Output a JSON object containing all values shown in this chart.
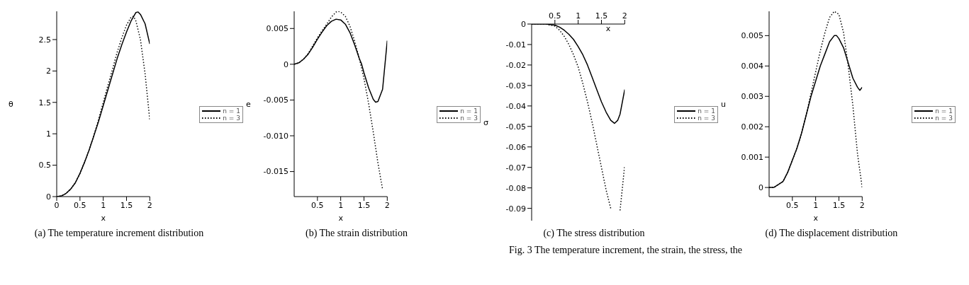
{
  "chart_data": [
    {
      "type": "line",
      "title": "(a) The temperature increment distribution",
      "xlabel": "x",
      "ylabel": "θ",
      "xlim": [
        0,
        2
      ],
      "xticks": [
        0,
        0.5,
        1,
        1.5,
        2
      ],
      "ylim": [
        0,
        2.95
      ],
      "yticks": [
        0,
        0.5,
        1,
        1.5,
        2,
        2.5
      ],
      "legend": "right",
      "marker": "none",
      "series": [
        {
          "name": "n = 1",
          "color": "#000000",
          "line_style": "solid",
          "x": [
            0,
            0.1,
            0.2,
            0.3,
            0.4,
            0.5,
            0.6,
            0.7,
            0.8,
            0.9,
            1,
            1.1,
            1.2,
            1.3,
            1.4,
            1.5,
            1.6,
            1.7,
            1.75,
            1.8,
            1.9,
            2
          ],
          "values": [
            0,
            0.01,
            0.05,
            0.12,
            0.22,
            0.37,
            0.55,
            0.75,
            0.97,
            1.2,
            1.45,
            1.7,
            1.95,
            2.2,
            2.42,
            2.62,
            2.8,
            2.93,
            2.94,
            2.9,
            2.75,
            2.43
          ]
        },
        {
          "name": "n = 3",
          "color": "#000000",
          "line_style": "dotted",
          "x": [
            0,
            0.1,
            0.2,
            0.3,
            0.4,
            0.5,
            0.6,
            0.7,
            0.8,
            0.9,
            1,
            1.1,
            1.2,
            1.3,
            1.4,
            1.5,
            1.6,
            1.65,
            1.7,
            1.8,
            1.9,
            2
          ],
          "values": [
            0,
            0.01,
            0.05,
            0.12,
            0.22,
            0.37,
            0.55,
            0.75,
            0.98,
            1.23,
            1.5,
            1.77,
            2.03,
            2.3,
            2.53,
            2.73,
            2.86,
            2.87,
            2.8,
            2.5,
            1.95,
            1.22
          ]
        }
      ]
    },
    {
      "type": "line",
      "title": "(b) The strain distribution",
      "xlabel": "x",
      "ylabel": "e",
      "xlim": [
        0,
        2
      ],
      "xticks": [
        0.5,
        1,
        1.5,
        2
      ],
      "ylim": [
        -0.0185,
        0.0074
      ],
      "yticks": [
        {
          "value": -0.015,
          "label": "-0.015"
        },
        {
          "value": -0.01,
          "label": "-0.010"
        },
        {
          "value": -0.005,
          "label": "-0.005"
        },
        0,
        0.005
      ],
      "legend": "right",
      "marker": "none",
      "series": [
        {
          "name": "n = 1",
          "color": "#000000",
          "line_style": "solid",
          "x": [
            0,
            0.1,
            0.2,
            0.3,
            0.4,
            0.5,
            0.6,
            0.7,
            0.8,
            0.9,
            1,
            1.1,
            1.2,
            1.3,
            1.4,
            1.45,
            1.5,
            1.6,
            1.7,
            1.75,
            1.8,
            1.9,
            2
          ],
          "values": [
            0,
            0.0002,
            0.0007,
            0.0014,
            0.0024,
            0.0035,
            0.0045,
            0.0054,
            0.006,
            0.0063,
            0.0062,
            0.0056,
            0.0044,
            0.0027,
            0.0008,
            0,
            -0.0012,
            -0.0033,
            -0.0049,
            -0.0053,
            -0.0052,
            -0.0035,
            0.0033
          ]
        },
        {
          "name": "n = 3",
          "color": "#000000",
          "line_style": "dotted",
          "x": [
            0,
            0.1,
            0.2,
            0.3,
            0.4,
            0.5,
            0.6,
            0.7,
            0.8,
            0.9,
            0.95,
            1,
            1.1,
            1.2,
            1.3,
            1.4,
            1.5,
            1.6,
            1.7,
            1.8,
            1.9
          ],
          "values": [
            0,
            0.0002,
            0.0007,
            0.0015,
            0.0026,
            0.0037,
            0.0047,
            0.0056,
            0.0066,
            0.0073,
            0.0074,
            0.0073,
            0.0067,
            0.0053,
            0.0032,
            0.0008,
            -0.002,
            -0.0055,
            -0.0095,
            -0.0138,
            -0.0175
          ]
        }
      ]
    },
    {
      "type": "line",
      "title": "(c) The stress distribution",
      "xlabel": "x",
      "ylabel": "σ",
      "xlim": [
        0,
        2
      ],
      "xticks": [
        0.5,
        1,
        1.5,
        2
      ],
      "ylim": [
        -0.096,
        0
      ],
      "yticks": [
        -0.09,
        -0.08,
        -0.07,
        -0.06,
        -0.05,
        -0.04,
        -0.03,
        -0.02,
        -0.01,
        0
      ],
      "legend": "right",
      "marker": "none",
      "annotations": [
        "Fig. 3 The temperature increment, the strain, the stress, the"
      ],
      "series": [
        {
          "name": "n = 1",
          "color": "#000000",
          "line_style": "solid",
          "x": [
            0,
            0.3,
            0.5,
            0.6,
            0.7,
            0.8,
            0.9,
            1,
            1.1,
            1.2,
            1.3,
            1.4,
            1.5,
            1.6,
            1.7,
            1.78,
            1.85,
            1.9,
            2
          ],
          "values": [
            0,
            0,
            -0.0005,
            -0.0015,
            -0.003,
            -0.005,
            -0.0075,
            -0.011,
            -0.015,
            -0.02,
            -0.026,
            -0.032,
            -0.038,
            -0.043,
            -0.047,
            -0.0485,
            -0.047,
            -0.044,
            -0.032
          ]
        },
        {
          "name": "n = 3",
          "color": "#000000",
          "line_style": "dotted",
          "x": [
            0,
            0.3,
            0.5,
            0.6,
            0.7,
            0.8,
            0.9,
            1,
            1.1,
            1.2,
            1.3,
            1.4,
            1.5,
            1.6,
            1.7,
            1.8,
            1.85,
            1.9,
            2
          ],
          "values": [
            0,
            0,
            -0.001,
            -0.003,
            -0.006,
            -0.01,
            -0.015,
            -0.021,
            -0.029,
            -0.038,
            -0.048,
            -0.059,
            -0.07,
            -0.081,
            -0.09,
            null,
            null,
            -0.091,
            -0.069
          ]
        }
      ]
    },
    {
      "type": "line",
      "title": "(d) The displacement distribution",
      "xlabel": "x",
      "ylabel": "u",
      "xlim": [
        0,
        2
      ],
      "xticks": [
        0.5,
        1,
        1.5,
        2
      ],
      "ylim": [
        -0.0003,
        0.0058
      ],
      "yticks": [
        0,
        0.001,
        0.002,
        0.003,
        0.004,
        0.005
      ],
      "legend": "right",
      "marker": "none",
      "series": [
        {
          "name": "n = 1",
          "color": "#000000",
          "line_style": "solid",
          "x": [
            0,
            0.1,
            0.2,
            0.3,
            0.4,
            0.5,
            0.6,
            0.7,
            0.8,
            0.9,
            1,
            1.1,
            1.2,
            1.3,
            1.4,
            1.45,
            1.5,
            1.6,
            1.7,
            1.8,
            1.9,
            1.95,
            2
          ],
          "values": [
            0,
            0,
            0.0001,
            0.0002,
            0.0005,
            0.0009,
            0.0013,
            0.0018,
            0.0024,
            0.003,
            0.0035,
            0.004,
            0.0044,
            0.0048,
            0.005,
            0.005,
            0.0049,
            0.0046,
            0.0041,
            0.0036,
            0.0033,
            0.0032,
            0.0033
          ]
        },
        {
          "name": "n = 3",
          "color": "#000000",
          "line_style": "dotted",
          "x": [
            0,
            0.1,
            0.2,
            0.3,
            0.4,
            0.5,
            0.6,
            0.7,
            0.8,
            0.9,
            1,
            1.1,
            1.2,
            1.3,
            1.4,
            1.5,
            1.6,
            1.7,
            1.8,
            1.9,
            2
          ],
          "values": [
            0,
            0,
            0.0001,
            0.0002,
            0.0005,
            0.0009,
            0.0013,
            0.0018,
            0.0024,
            0.0031,
            0.0038,
            0.0045,
            0.0051,
            0.0056,
            0.0058,
            0.0057,
            0.0051,
            0.004,
            0.0027,
            0.0011,
            0
          ]
        }
      ]
    }
  ]
}
